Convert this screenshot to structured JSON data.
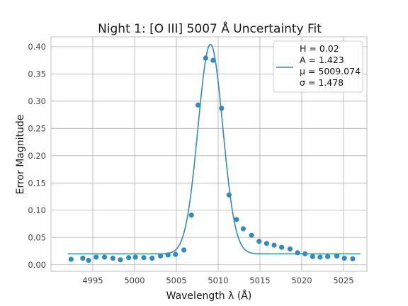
{
  "chart_data": {
    "type": "scatter",
    "title": "Night 1: [O III] 5007 Å Uncertainty Fit",
    "xlabel": "Wavelength λ (Å)",
    "ylabel": "Error Magnitude",
    "xlim": [
      4990.0,
      5027.8
    ],
    "ylim": [
      -0.012,
      0.418
    ],
    "xticks": [
      4995,
      5000,
      5005,
      5010,
      5015,
      5020,
      5025
    ],
    "xtick_labels": [
      "4995",
      "5000",
      "5005",
      "5010",
      "5015",
      "5020",
      "5025"
    ],
    "yticks": [
      0.0,
      0.05,
      0.1,
      0.15,
      0.2,
      0.25,
      0.3,
      0.35,
      0.4
    ],
    "ytick_labels": [
      "0.00",
      "0.05",
      "0.10",
      "0.15",
      "0.20",
      "0.25",
      "0.30",
      "0.35",
      "0.40"
    ],
    "grid": true,
    "legend_position": "top-right",
    "colors": {
      "points": "#348abd",
      "fit": "#348abd",
      "grid": "#b0b0b0",
      "frame": "#bcbcbc"
    },
    "fit": {
      "H": 0.02,
      "A": 1.423,
      "mu": 5009.074,
      "sigma": 1.478,
      "x_range": [
        4992.0,
        5027.0
      ],
      "legend_lines": [
        "H = 0.02",
        "A = 1.423",
        "μ = 5009.074",
        "σ = 1.478"
      ]
    },
    "points": {
      "x": [
        4992.4,
        4993.8,
        4994.5,
        4995.4,
        4996.4,
        4997.4,
        4998.3,
        4999.3,
        5000.1,
        5001.1,
        5002.1,
        5003.1,
        5004.0,
        5004.9,
        5005.9,
        5006.8,
        5007.6,
        5008.5,
        5009.4,
        5010.4,
        5011.3,
        5012.2,
        5013.0,
        5014.0,
        5014.9,
        5015.8,
        5016.7,
        5017.6,
        5018.6,
        5019.5,
        5020.4,
        5021.3,
        5022.2,
        5023.1,
        5024.2,
        5025.1,
        5026.1
      ],
      "y": [
        0.01,
        0.012,
        0.008,
        0.014,
        0.014,
        0.012,
        0.009,
        0.013,
        0.014,
        0.013,
        0.012,
        0.016,
        0.018,
        0.019,
        0.027,
        0.091,
        0.293,
        0.379,
        0.375,
        0.287,
        0.128,
        0.083,
        0.066,
        0.054,
        0.043,
        0.039,
        0.036,
        0.032,
        0.029,
        0.022,
        0.02,
        0.015,
        0.014,
        0.015,
        0.016,
        0.012,
        0.011
      ]
    }
  }
}
